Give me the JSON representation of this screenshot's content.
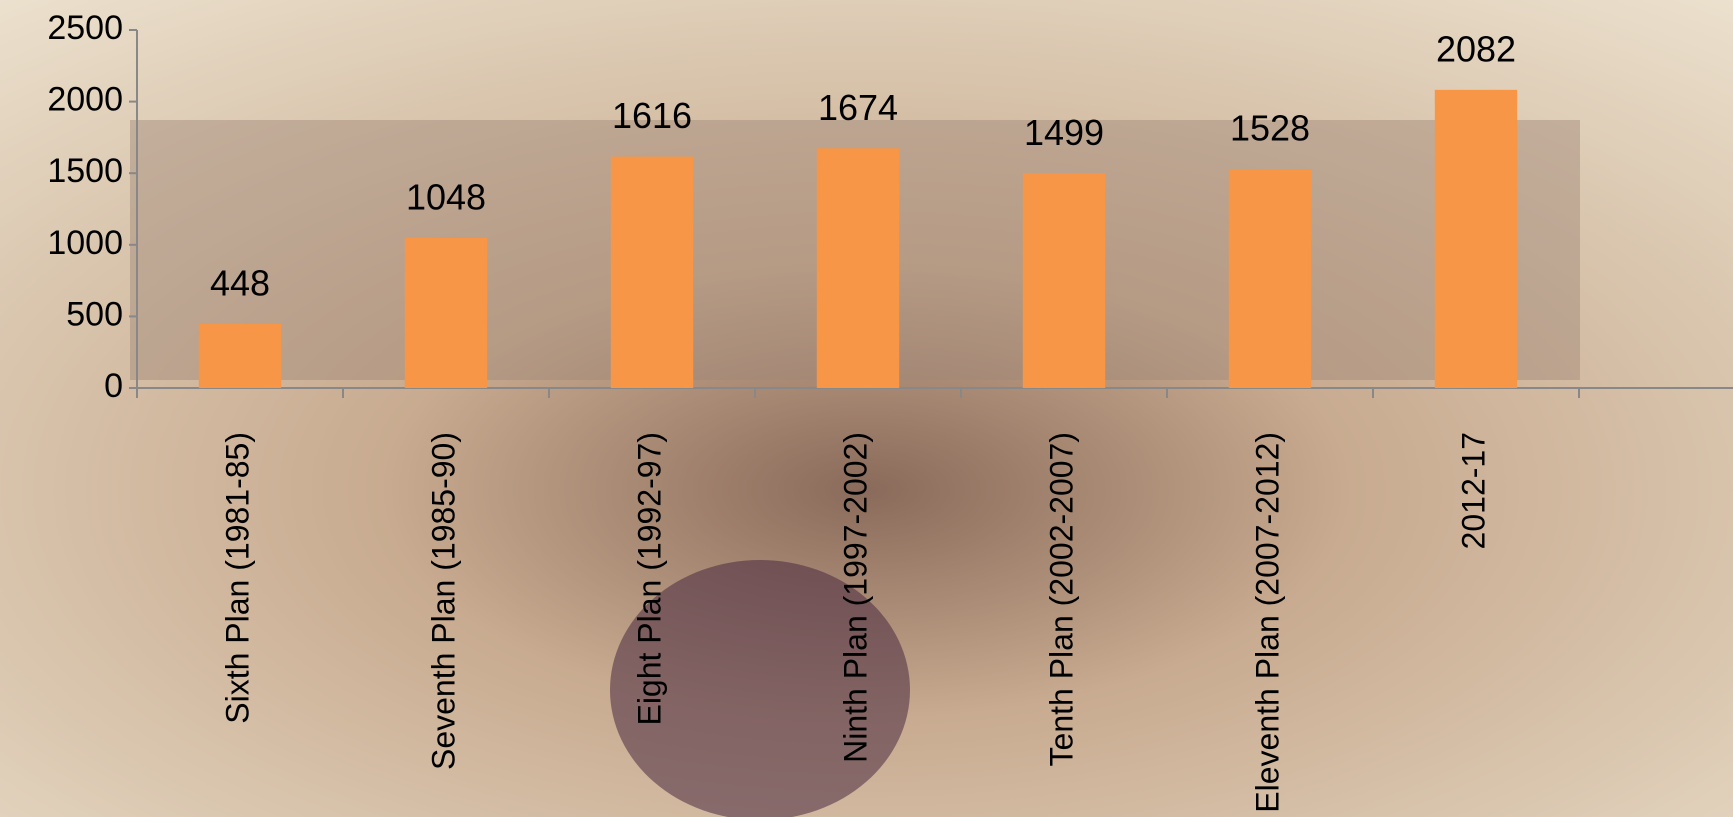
{
  "chart_data": {
    "type": "bar",
    "categories": [
      "Sixth Plan (1981-85)",
      "Seventh Plan (1985-90)",
      "Eight Plan (1992-97)",
      "Ninth Plan (1997-2002)",
      "Tenth Plan (2002-2007)",
      "Eleventh Plan (2007-2012)",
      "2012-17"
    ],
    "values": [
      448,
      1048,
      1616,
      1674,
      1499,
      1528,
      2082
    ],
    "color": "#f79646",
    "ylim": [
      0,
      2500
    ],
    "yticks": [
      0,
      500,
      1000,
      1500,
      2000,
      2500
    ],
    "grid": false
  }
}
